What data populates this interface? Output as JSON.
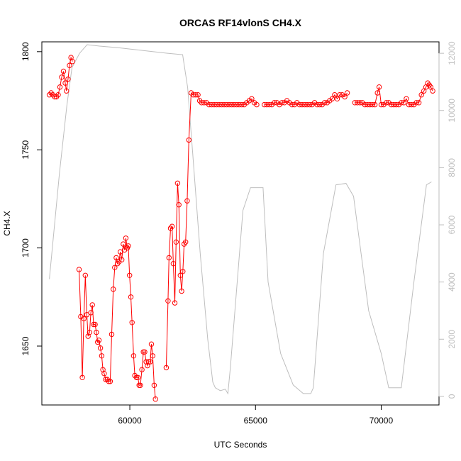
{
  "chart_data": {
    "type": "line",
    "title": "ORCAS RF14vlonS CH4.X",
    "xlabel": "UTC Seconds",
    "ylabel": "CH4.X",
    "xlim": [
      56500,
      72300
    ],
    "ylim": [
      1620,
      1805
    ],
    "y2lim": [
      -300,
      12400
    ],
    "x_ticks": [
      60000,
      65000,
      70000
    ],
    "y_ticks": [
      1650,
      1700,
      1750,
      1800
    ],
    "y2_ticks": [
      0,
      2000,
      4000,
      6000,
      8000,
      10000,
      12000
    ],
    "grid": false,
    "colors": {
      "ch4": "#ff0000",
      "altitude": "#bebebe"
    },
    "series": [
      {
        "role": "CH4.X (left axis, red line with open circles)",
        "points": [
          [
            56800,
            1778
          ],
          [
            56870,
            1779
          ],
          [
            56940,
            1778
          ],
          [
            57010,
            1777
          ],
          [
            57080,
            1777
          ],
          [
            57150,
            1778
          ],
          [
            57220,
            1782
          ],
          [
            57290,
            1787
          ],
          [
            57360,
            1790
          ],
          [
            57430,
            1784
          ],
          [
            57480,
            1780
          ],
          [
            57540,
            1786
          ],
          [
            57600,
            1793
          ],
          [
            57660,
            1797
          ],
          [
            57720,
            1795
          ],
          [
            57980,
            1689
          ],
          [
            58050,
            1665
          ],
          [
            58110,
            1634
          ],
          [
            58170,
            1664
          ],
          [
            58230,
            1686
          ],
          [
            58290,
            1666
          ],
          [
            58340,
            1655
          ],
          [
            58400,
            1657
          ],
          [
            58450,
            1667
          ],
          [
            58510,
            1671
          ],
          [
            58560,
            1661
          ],
          [
            58620,
            1661
          ],
          [
            58670,
            1657
          ],
          [
            58720,
            1652
          ],
          [
            58770,
            1653
          ],
          [
            58830,
            1649
          ],
          [
            58880,
            1645
          ],
          [
            58930,
            1638
          ],
          [
            58980,
            1636
          ],
          [
            59040,
            1633
          ],
          [
            59100,
            1633
          ],
          [
            59160,
            1632
          ],
          [
            59220,
            1632
          ],
          [
            59280,
            1656
          ],
          [
            59340,
            1679
          ],
          [
            59400,
            1690
          ],
          [
            59460,
            1695
          ],
          [
            59510,
            1692
          ],
          [
            59570,
            1693
          ],
          [
            59620,
            1698
          ],
          [
            59680,
            1694
          ],
          [
            59740,
            1702
          ],
          [
            59790,
            1699
          ],
          [
            59840,
            1705
          ],
          [
            59900,
            1700
          ],
          [
            59940,
            1701
          ],
          [
            59990,
            1686
          ],
          [
            60040,
            1675
          ],
          [
            60090,
            1662
          ],
          [
            60150,
            1645
          ],
          [
            60200,
            1635
          ],
          [
            60260,
            1634
          ],
          [
            60320,
            1634
          ],
          [
            60370,
            1630
          ],
          [
            60420,
            1630
          ],
          [
            60480,
            1638
          ],
          [
            60540,
            1647
          ],
          [
            60590,
            1647
          ],
          [
            60650,
            1642
          ],
          [
            60700,
            1640
          ],
          [
            60750,
            1642
          ],
          [
            60810,
            1642
          ],
          [
            60860,
            1651
          ],
          [
            60910,
            1645
          ],
          [
            60970,
            1630
          ],
          [
            61020,
            1623
          ],
          [
            61450,
            1639
          ],
          [
            61520,
            1673
          ],
          [
            61560,
            1695
          ],
          [
            61620,
            1710
          ],
          [
            61680,
            1711
          ],
          [
            61730,
            1692
          ],
          [
            61790,
            1672
          ],
          [
            61840,
            1703
          ],
          [
            61900,
            1733
          ],
          [
            61950,
            1722
          ],
          [
            62010,
            1686
          ],
          [
            62060,
            1678
          ],
          [
            62110,
            1688
          ],
          [
            62160,
            1702
          ],
          [
            62220,
            1703
          ],
          [
            62280,
            1724
          ],
          [
            62350,
            1755
          ],
          [
            62440,
            1779
          ],
          [
            62530,
            1778
          ],
          [
            62620,
            1778
          ],
          [
            62710,
            1778
          ],
          [
            62780,
            1775
          ],
          [
            62850,
            1774
          ],
          [
            62950,
            1774
          ],
          [
            63050,
            1774
          ],
          [
            63150,
            1773
          ],
          [
            63250,
            1773
          ],
          [
            63350,
            1773
          ],
          [
            63450,
            1773
          ],
          [
            63550,
            1773
          ],
          [
            63650,
            1773
          ],
          [
            63750,
            1773
          ],
          [
            63850,
            1773
          ],
          [
            63950,
            1773
          ],
          [
            64050,
            1773
          ],
          [
            64150,
            1773
          ],
          [
            64250,
            1773
          ],
          [
            64350,
            1773
          ],
          [
            64450,
            1773
          ],
          [
            64550,
            1773
          ],
          [
            64650,
            1774
          ],
          [
            64750,
            1775
          ],
          [
            64850,
            1776
          ],
          [
            64950,
            1774
          ],
          [
            65050,
            1773
          ],
          [
            65350,
            1773
          ],
          [
            65450,
            1773
          ],
          [
            65550,
            1773
          ],
          [
            65650,
            1773
          ],
          [
            65750,
            1774
          ],
          [
            65850,
            1774
          ],
          [
            65950,
            1773
          ],
          [
            66050,
            1774
          ],
          [
            66150,
            1774
          ],
          [
            66250,
            1775
          ],
          [
            66350,
            1774
          ],
          [
            66450,
            1773
          ],
          [
            66550,
            1773
          ],
          [
            66650,
            1774
          ],
          [
            66750,
            1773
          ],
          [
            66850,
            1773
          ],
          [
            66950,
            1773
          ],
          [
            67050,
            1773
          ],
          [
            67150,
            1773
          ],
          [
            67250,
            1773
          ],
          [
            67350,
            1774
          ],
          [
            67450,
            1773
          ],
          [
            67550,
            1773
          ],
          [
            67650,
            1773
          ],
          [
            67750,
            1774
          ],
          [
            67850,
            1774
          ],
          [
            67950,
            1775
          ],
          [
            68050,
            1776
          ],
          [
            68150,
            1778
          ],
          [
            68250,
            1776
          ],
          [
            68350,
            1778
          ],
          [
            68450,
            1778
          ],
          [
            68550,
            1777
          ],
          [
            68650,
            1779
          ],
          [
            68950,
            1774
          ],
          [
            69050,
            1774
          ],
          [
            69150,
            1774
          ],
          [
            69250,
            1774
          ],
          [
            69350,
            1773
          ],
          [
            69450,
            1773
          ],
          [
            69550,
            1773
          ],
          [
            69650,
            1773
          ],
          [
            69750,
            1773
          ],
          [
            69850,
            1779
          ],
          [
            69920,
            1782
          ],
          [
            70000,
            1773
          ],
          [
            70100,
            1773
          ],
          [
            70200,
            1774
          ],
          [
            70300,
            1774
          ],
          [
            70400,
            1773
          ],
          [
            70500,
            1773
          ],
          [
            70600,
            1773
          ],
          [
            70700,
            1773
          ],
          [
            70800,
            1774
          ],
          [
            70900,
            1774
          ],
          [
            71000,
            1776
          ],
          [
            71100,
            1773
          ],
          [
            71200,
            1773
          ],
          [
            71300,
            1773
          ],
          [
            71400,
            1774
          ],
          [
            71500,
            1774
          ],
          [
            71600,
            1778
          ],
          [
            71700,
            1780
          ],
          [
            71780,
            1782
          ],
          [
            71850,
            1784
          ],
          [
            71910,
            1783
          ],
          [
            71970,
            1782
          ],
          [
            72050,
            1780
          ]
        ]
      },
      {
        "role": "Altitude (right axis, grey line)",
        "points": [
          [
            56800,
            4100
          ],
          [
            57200,
            7800
          ],
          [
            57500,
            10200
          ],
          [
            57700,
            11500
          ],
          [
            58000,
            12000
          ],
          [
            58300,
            12300
          ],
          [
            58800,
            12250
          ],
          [
            59500,
            12200
          ],
          [
            60500,
            12100
          ],
          [
            61500,
            12000
          ],
          [
            62100,
            11950
          ],
          [
            62300,
            10800
          ],
          [
            62500,
            8500
          ],
          [
            62800,
            5000
          ],
          [
            63100,
            2000
          ],
          [
            63300,
            500
          ],
          [
            63400,
            300
          ],
          [
            63600,
            200
          ],
          [
            63800,
            250
          ],
          [
            63900,
            100
          ],
          [
            64000,
            1000
          ],
          [
            64500,
            6500
          ],
          [
            64800,
            7300
          ],
          [
            65300,
            7300
          ],
          [
            65500,
            4000
          ],
          [
            66000,
            1500
          ],
          [
            66500,
            400
          ],
          [
            66900,
            100
          ],
          [
            67200,
            100
          ],
          [
            67300,
            300
          ],
          [
            67700,
            5000
          ],
          [
            68200,
            7400
          ],
          [
            68600,
            7450
          ],
          [
            68900,
            7000
          ],
          [
            69200,
            5000
          ],
          [
            69500,
            3000
          ],
          [
            70000,
            1500
          ],
          [
            70300,
            300
          ],
          [
            70800,
            300
          ],
          [
            71300,
            4000
          ],
          [
            71800,
            7400
          ],
          [
            72000,
            7500
          ]
        ]
      }
    ]
  }
}
